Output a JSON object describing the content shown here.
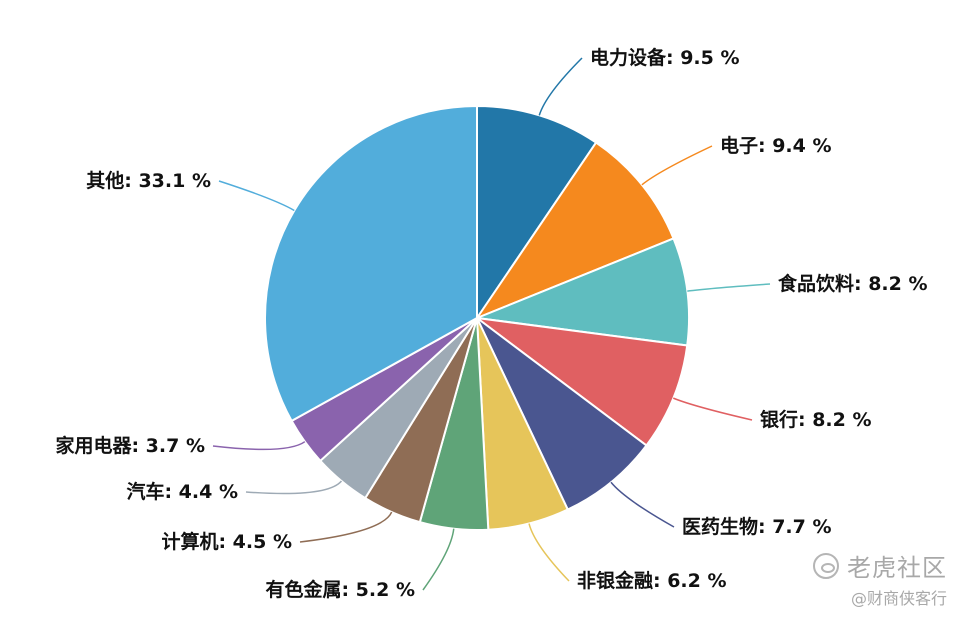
{
  "chart_data": {
    "type": "pie",
    "categories": [
      "电力设备",
      "电子",
      "食品饮料",
      "银行",
      "医药生物",
      "非银金融",
      "有色金属",
      "计算机",
      "汽车",
      "家用电器",
      "其他"
    ],
    "values": [
      9.5,
      9.4,
      8.2,
      8.2,
      7.7,
      6.2,
      5.2,
      4.5,
      4.4,
      3.7,
      33.1
    ],
    "labels": [
      "电力设备: 9.5 %",
      "电子: 9.4 %",
      "食品饮料: 8.2 %",
      "银行: 8.2 %",
      "医药生物: 7.7 %",
      "非银金融: 6.2 %",
      "有色金属: 5.2 %",
      "计算机: 4.5 %",
      "汽车: 4.4 %",
      "家用电器: 3.7 %",
      "其他: 33.1 %"
    ],
    "colors": [
      "#2277a8",
      "#f5891e",
      "#5fbdbf",
      "#e06062",
      "#4a5690",
      "#e6c55a",
      "#5fa478",
      "#8f6d55",
      "#9eaab5",
      "#8a63ad",
      "#52addb"
    ],
    "start": "top, clockwise"
  },
  "watermark": {
    "title": "老虎社区",
    "subtitle": "@财商侠客行",
    "icon": "tiger-logo-icon"
  }
}
